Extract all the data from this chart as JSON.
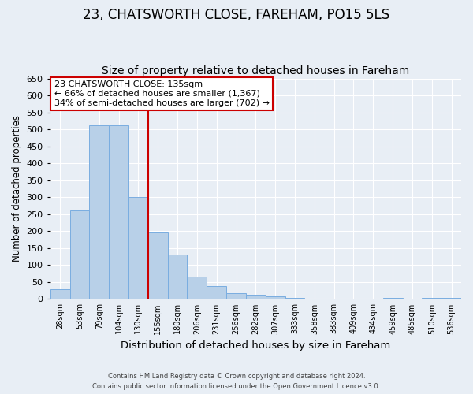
{
  "title": "23, CHATSWORTH CLOSE, FAREHAM, PO15 5LS",
  "subtitle": "Size of property relative to detached houses in Fareham",
  "xlabel": "Distribution of detached houses by size in Fareham",
  "ylabel": "Number of detached properties",
  "bin_labels": [
    "28sqm",
    "53sqm",
    "79sqm",
    "104sqm",
    "130sqm",
    "155sqm",
    "180sqm",
    "206sqm",
    "231sqm",
    "256sqm",
    "282sqm",
    "307sqm",
    "333sqm",
    "358sqm",
    "383sqm",
    "409sqm",
    "434sqm",
    "459sqm",
    "485sqm",
    "510sqm",
    "536sqm"
  ],
  "bar_values": [
    30,
    262,
    512,
    512,
    300,
    197,
    130,
    65,
    38,
    18,
    13,
    7,
    4,
    2,
    0,
    0,
    0,
    3,
    0,
    3,
    3
  ],
  "bar_color": "#b8d0e8",
  "bar_edge_color": "#7aade0",
  "vline_x_index": 4,
  "vline_color": "#cc0000",
  "ylim": [
    0,
    650
  ],
  "yticks": [
    0,
    50,
    100,
    150,
    200,
    250,
    300,
    350,
    400,
    450,
    500,
    550,
    600,
    650
  ],
  "annotation_title": "23 CHATSWORTH CLOSE: 135sqm",
  "annotation_line1": "← 66% of detached houses are smaller (1,367)",
  "annotation_line2": "34% of semi-detached houses are larger (702) →",
  "annotation_box_edge": "#cc0000",
  "footer_line1": "Contains HM Land Registry data © Crown copyright and database right 2024.",
  "footer_line2": "Contains public sector information licensed under the Open Government Licence v3.0.",
  "bg_color": "#e8eef5",
  "plot_bg_color": "#e8eef5",
  "title_fontsize": 12,
  "subtitle_fontsize": 10,
  "grid_color": "#ffffff"
}
